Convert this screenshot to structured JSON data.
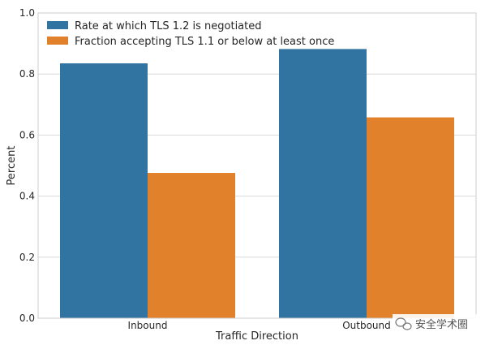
{
  "chart_data": {
    "type": "bar",
    "categories": [
      "Inbound",
      "Outbound"
    ],
    "series": [
      {
        "name": "Rate at which TLS 1.2 is negotiated",
        "values": [
          0.835,
          0.882
        ],
        "color": "#3274a1"
      },
      {
        "name": "Fraction accepting TLS 1.1 or below at least once",
        "values": [
          0.476,
          0.658
        ],
        "color": "#e1812c"
      }
    ],
    "title": "",
    "xlabel": "Traffic Direction",
    "ylabel": "Percent",
    "ylim": [
      0,
      1.0
    ],
    "yticks": [
      "0.0",
      "0.2",
      "0.4",
      "0.6",
      "0.8",
      "1.0"
    ],
    "grid": "horizontal",
    "legend": "top-left"
  },
  "watermark": {
    "text": "安全学术圈",
    "icon": "wechat-icon"
  }
}
